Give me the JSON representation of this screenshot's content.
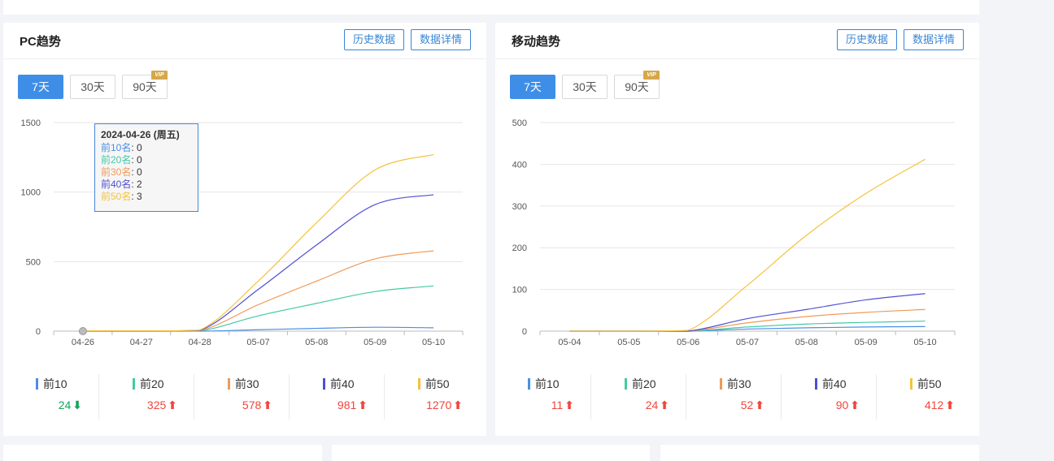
{
  "colors": {
    "top10": "#4a8fe7",
    "top20": "#44c9a6",
    "top30": "#f19a56",
    "top40": "#4f4fd3",
    "top50": "#f4c23c",
    "accent": "#3e8ee8",
    "up": "#f0453d",
    "down": "#15a45a"
  },
  "top_strip_text": "                                                                         ",
  "header_buttons": {
    "history": "历史数据",
    "details": "数据详情"
  },
  "range_buttons": {
    "d7": "7天",
    "d30": "30天",
    "d90": "90天",
    "vip": "VIP"
  },
  "pc": {
    "title": "PC趋势",
    "tooltip": {
      "title": "2024-04-26 (周五)",
      "rows": [
        {
          "label": "前10名",
          "value": "0"
        },
        {
          "label": "前20名",
          "value": "0"
        },
        {
          "label": "前30名",
          "value": "0"
        },
        {
          "label": "前40名",
          "value": "2"
        },
        {
          "label": "前50名",
          "value": "3"
        }
      ]
    },
    "summary": [
      {
        "label": "前10",
        "value": "24",
        "trend": "down"
      },
      {
        "label": "前20",
        "value": "325",
        "trend": "up"
      },
      {
        "label": "前30",
        "value": "578",
        "trend": "up"
      },
      {
        "label": "前40",
        "value": "981",
        "trend": "up"
      },
      {
        "label": "前50",
        "value": "1270",
        "trend": "up"
      }
    ]
  },
  "mobile": {
    "title": "移动趋势",
    "summary": [
      {
        "label": "前10",
        "value": "11",
        "trend": "up"
      },
      {
        "label": "前20",
        "value": "24",
        "trend": "up"
      },
      {
        "label": "前30",
        "value": "52",
        "trend": "up"
      },
      {
        "label": "前40",
        "value": "90",
        "trend": "up"
      },
      {
        "label": "前50",
        "value": "412",
        "trend": "up"
      }
    ]
  },
  "chart_data": [
    {
      "type": "line",
      "title": "PC趋势",
      "categories": [
        "04-26",
        "04-27",
        "04-28",
        "05-07",
        "05-08",
        "05-09",
        "05-10"
      ],
      "ylim": [
        0,
        1500
      ],
      "yticks": [
        0,
        500,
        1000,
        1500
      ],
      "grid": true,
      "series": [
        {
          "name": "前10",
          "values": [
            0,
            0,
            0,
            10,
            20,
            28,
            24
          ]
        },
        {
          "name": "前20",
          "values": [
            0,
            0,
            2,
            110,
            200,
            285,
            325
          ]
        },
        {
          "name": "前30",
          "values": [
            0,
            0,
            3,
            190,
            360,
            520,
            578
          ]
        },
        {
          "name": "前40",
          "values": [
            2,
            2,
            5,
            300,
            620,
            910,
            981
          ]
        },
        {
          "name": "前50",
          "values": [
            3,
            3,
            8,
            360,
            780,
            1160,
            1270
          ]
        }
      ]
    },
    {
      "type": "line",
      "title": "移动趋势",
      "categories": [
        "05-04",
        "05-05",
        "05-06",
        "05-07",
        "05-08",
        "05-09",
        "05-10"
      ],
      "ylim": [
        0,
        500
      ],
      "yticks": [
        0,
        100,
        200,
        300,
        400,
        500
      ],
      "grid": true,
      "series": [
        {
          "name": "前10",
          "values": [
            0,
            0,
            0,
            5,
            8,
            10,
            11
          ]
        },
        {
          "name": "前20",
          "values": [
            0,
            0,
            0,
            10,
            17,
            21,
            24
          ]
        },
        {
          "name": "前30",
          "values": [
            0,
            0,
            0,
            20,
            35,
            45,
            52
          ]
        },
        {
          "name": "前40",
          "values": [
            0,
            0,
            0,
            30,
            52,
            75,
            90
          ]
        },
        {
          "name": "前50",
          "values": [
            0,
            0,
            2,
            110,
            230,
            330,
            412
          ]
        }
      ]
    }
  ]
}
